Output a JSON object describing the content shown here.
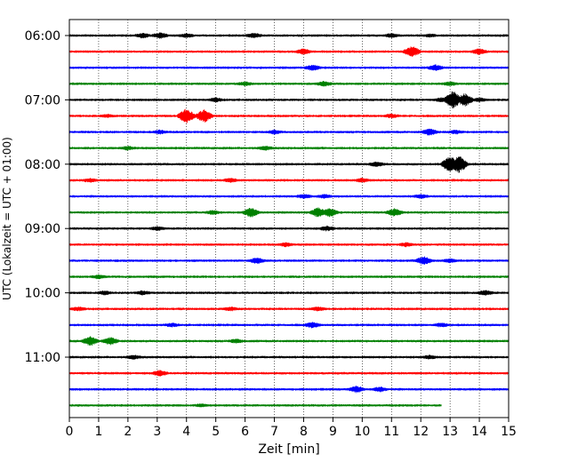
{
  "chart_data": {
    "type": "line",
    "xlabel": "Zeit  [min]",
    "ylabel": "UTC (Lokalzeit = UTC + 01:00)",
    "xlim": [
      0,
      15
    ],
    "x_ticks": [
      "0",
      "1",
      "2",
      "3",
      "4",
      "5",
      "6",
      "7",
      "8",
      "9",
      "10",
      "11",
      "12",
      "13",
      "14",
      "15"
    ],
    "y_tick_labels": [
      "06:00",
      "07:00",
      "08:00",
      "09:00",
      "10:00",
      "11:00"
    ],
    "grid": "vertical dotted",
    "trace_colors": [
      "#000000",
      "#ff0000",
      "#0000ff",
      "#008000"
    ],
    "rows": [
      {
        "start": "06:00",
        "end_min": 15,
        "bursts": [
          [
            2.5,
            2.5
          ],
          [
            3.1,
            3
          ],
          [
            4.0,
            2
          ],
          [
            6.3,
            2.5
          ],
          [
            11.0,
            2
          ],
          [
            12.3,
            1.5
          ]
        ]
      },
      {
        "start": "06:15",
        "end_min": 15,
        "bursts": [
          [
            8.0,
            3
          ],
          [
            11.7,
            6
          ],
          [
            14.0,
            3
          ]
        ]
      },
      {
        "start": "06:30",
        "end_min": 15,
        "bursts": [
          [
            8.3,
            3
          ],
          [
            12.5,
            3
          ]
        ]
      },
      {
        "start": "06:45",
        "end_min": 15,
        "bursts": [
          [
            6.0,
            2
          ],
          [
            8.7,
            2.5
          ],
          [
            13.0,
            2
          ]
        ]
      },
      {
        "start": "07:00",
        "end_min": 15,
        "bursts": [
          [
            5.0,
            2
          ],
          [
            12.7,
            2
          ],
          [
            13.1,
            10
          ],
          [
            13.5,
            7
          ],
          [
            14.0,
            2
          ]
        ]
      },
      {
        "start": "07:15",
        "end_min": 15,
        "bursts": [
          [
            1.3,
            1.5
          ],
          [
            4.0,
            8
          ],
          [
            4.6,
            7
          ],
          [
            11.0,
            2
          ]
        ]
      },
      {
        "start": "07:30",
        "end_min": 15,
        "bursts": [
          [
            3.1,
            2
          ],
          [
            7.0,
            2
          ],
          [
            12.3,
            3.5
          ],
          [
            13.2,
            2
          ]
        ]
      },
      {
        "start": "07:45",
        "end_min": 15,
        "bursts": [
          [
            2.0,
            2
          ],
          [
            6.7,
            2
          ]
        ]
      },
      {
        "start": "08:00",
        "end_min": 15,
        "bursts": [
          [
            10.5,
            2.5
          ],
          [
            13.0,
            9
          ],
          [
            13.3,
            10
          ]
        ]
      },
      {
        "start": "08:15",
        "end_min": 15,
        "bursts": [
          [
            0.7,
            2
          ],
          [
            5.5,
            2
          ],
          [
            10.0,
            2
          ]
        ]
      },
      {
        "start": "08:30",
        "end_min": 15,
        "bursts": [
          [
            8.0,
            2
          ],
          [
            8.7,
            2
          ],
          [
            12.0,
            2
          ]
        ]
      },
      {
        "start": "08:45",
        "end_min": 15,
        "bursts": [
          [
            4.9,
            2
          ],
          [
            6.2,
            5
          ],
          [
            8.5,
            5
          ],
          [
            8.9,
            4.5
          ],
          [
            11.1,
            4
          ]
        ]
      },
      {
        "start": "09:00",
        "end_min": 15,
        "bursts": [
          [
            3.0,
            2
          ],
          [
            8.8,
            2.5
          ]
        ]
      },
      {
        "start": "09:15",
        "end_min": 15,
        "bursts": [
          [
            7.4,
            2
          ],
          [
            11.5,
            2
          ]
        ]
      },
      {
        "start": "09:30",
        "end_min": 15,
        "bursts": [
          [
            6.4,
            3
          ],
          [
            12.1,
            4.5
          ],
          [
            13.0,
            2
          ]
        ]
      },
      {
        "start": "09:45",
        "end_min": 15,
        "bursts": [
          [
            1.0,
            2
          ]
        ]
      },
      {
        "start": "10:00",
        "end_min": 15,
        "bursts": [
          [
            1.2,
            2
          ],
          [
            2.5,
            2
          ],
          [
            14.2,
            2.5
          ]
        ]
      },
      {
        "start": "10:15",
        "end_min": 15,
        "bursts": [
          [
            0.3,
            2
          ],
          [
            5.5,
            2
          ],
          [
            8.5,
            2
          ]
        ]
      },
      {
        "start": "10:30",
        "end_min": 15,
        "bursts": [
          [
            3.5,
            2
          ],
          [
            8.3,
            3
          ],
          [
            12.7,
            2
          ]
        ]
      },
      {
        "start": "10:45",
        "end_min": 15,
        "bursts": [
          [
            0.7,
            5
          ],
          [
            1.4,
            4
          ],
          [
            5.7,
            2
          ]
        ]
      },
      {
        "start": "11:00",
        "end_min": 15,
        "bursts": [
          [
            2.2,
            2
          ],
          [
            12.3,
            2
          ]
        ]
      },
      {
        "start": "11:15",
        "end_min": 15,
        "bursts": [
          [
            3.1,
            3
          ]
        ]
      },
      {
        "start": "11:30",
        "end_min": 15,
        "bursts": [
          [
            9.8,
            3.5
          ],
          [
            10.6,
            2.5
          ]
        ]
      },
      {
        "start": "11:45",
        "end_min": 12.7,
        "bursts": [
          [
            4.5,
            1.5
          ]
        ]
      }
    ]
  }
}
